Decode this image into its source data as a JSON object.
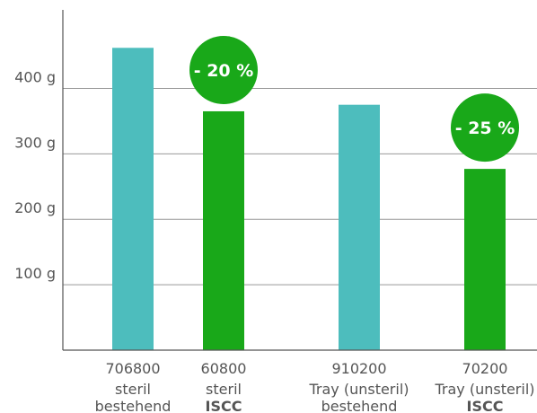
{
  "chart_data": {
    "type": "bar",
    "title": "",
    "xlabel": "",
    "ylabel": "",
    "ylim": [
      0,
      520
    ],
    "yticks": [
      {
        "value": 100,
        "label": "100 g"
      },
      {
        "value": 200,
        "label": "200 g"
      },
      {
        "value": 300,
        "label": "300 g"
      },
      {
        "value": 400,
        "label": "400 g"
      }
    ],
    "categories": [
      {
        "code": "706800",
        "line2": "steril",
        "line3": "bestehend",
        "line3_bold": false
      },
      {
        "code": "60800",
        "line2": "steril",
        "line3": "ISCC",
        "line3_bold": true
      },
      {
        "code": "910200",
        "line2": "Tray (unsteril)",
        "line3": "bestehend",
        "line3_bold": false
      },
      {
        "code": "70200",
        "line2": "Tray (unsteril)",
        "line3": "ISCC",
        "line3_bold": true
      }
    ],
    "values": [
      462,
      365,
      375,
      277
    ],
    "bar_colors": [
      "#4dbdbd",
      "#19a819",
      "#4dbdbd",
      "#19a819"
    ],
    "annotations": [
      {
        "text": "- 20 %",
        "bar_index": 1
      },
      {
        "text": "- 25 %",
        "bar_index": 3
      }
    ],
    "grid": true,
    "legend": "none"
  },
  "colors": {
    "existing": "#4dbdbd",
    "iscc": "#19a819",
    "badge": "#19a819",
    "grid": "#999999",
    "axis": "#555555"
  }
}
